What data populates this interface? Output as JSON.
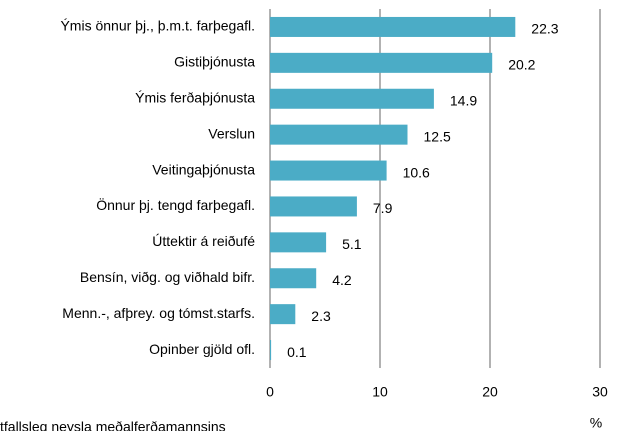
{
  "chart_data": {
    "type": "bar",
    "orientation": "horizontal",
    "categories": [
      "Ýmis önnur þj., þ.m.t. farþegafl.",
      "Gistiþjónusta",
      "Ýmis ferðaþjónusta",
      "Verslun",
      "Veitingaþjónusta",
      "Önnur þj. tengd farþegafl.",
      "Úttektir á reiðufé",
      "Bensín, viðg. og viðhald bifr.",
      "Menn.-, afþrey. og tómst.starfs.",
      "Opinber gjöld ofl."
    ],
    "values": [
      22.3,
      20.2,
      14.9,
      12.5,
      10.6,
      7.9,
      5.1,
      4.2,
      2.3,
      0.1
    ],
    "color": "#4bacc6",
    "xlim": [
      0,
      30
    ],
    "xticks": [
      0,
      10,
      20,
      30
    ],
    "grid": true,
    "x_label": "%",
    "caption": "tfallsleg neysla meðalferðamannsins"
  }
}
